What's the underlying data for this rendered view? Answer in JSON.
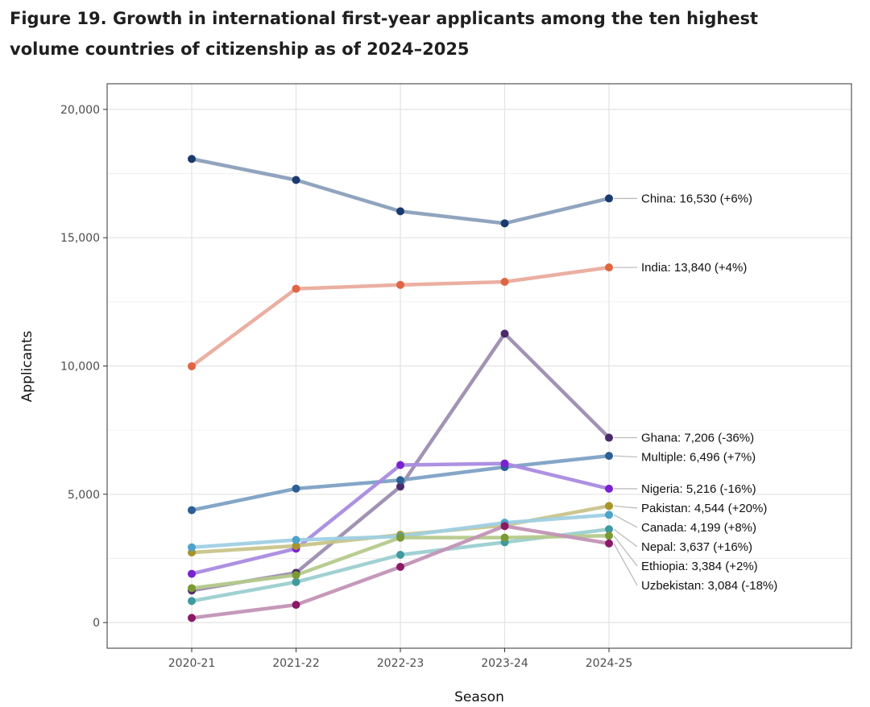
{
  "figure": {
    "title_line1": "Figure 19. Growth in international first-year applicants among the ten highest",
    "title_line2": "volume countries of citizenship as of 2024–2025"
  },
  "chart_data": {
    "type": "line",
    "xlabel": "Season",
    "ylabel": "Applicants",
    "categories": [
      "2020-21",
      "2021-22",
      "2022-23",
      "2023-24",
      "2024-25"
    ],
    "ylim": [
      -1000,
      21000
    ],
    "yticks": [
      0,
      5000,
      10000,
      15000,
      20000
    ],
    "ytick_labels": [
      "0",
      "5,000",
      "10,000",
      "15,000",
      "20,000"
    ],
    "grid": true,
    "series": [
      {
        "name": "China",
        "label": "China: 16,530 (+6%)",
        "line_color": "#8a9fbb",
        "point_color": "#1a3a6e",
        "values": [
          18070,
          17250,
          16030,
          15560,
          16530
        ]
      },
      {
        "name": "India",
        "label": "India: 13,840 (+4%)",
        "line_color": "#eaab9c",
        "point_color": "#e06543",
        "values": [
          9990,
          13010,
          13160,
          13280,
          13840
        ]
      },
      {
        "name": "Ghana",
        "label": "Ghana: 7,206 (-36%)",
        "line_color": "#9d8db0",
        "point_color": "#4b2a6b",
        "values": [
          1250,
          1940,
          5300,
          11260,
          7206
        ]
      },
      {
        "name": "Multiple",
        "label": "Multiple: 6,496 (+7%)",
        "line_color": "#7da1c4",
        "point_color": "#2b5f95",
        "values": [
          4380,
          5220,
          5550,
          6060,
          6496
        ]
      },
      {
        "name": "Nigeria",
        "label": "Nigeria: 5,216 (-16%)",
        "line_color": "#a98be0",
        "point_color": "#7a22d1",
        "values": [
          1900,
          2880,
          6140,
          6200,
          5216
        ]
      },
      {
        "name": "Pakistan",
        "label": "Pakistan: 4,544 (+20%)",
        "line_color": "#c9c489",
        "point_color": "#a8942a",
        "values": [
          2730,
          2990,
          3420,
          3790,
          4544
        ]
      },
      {
        "name": "Canada",
        "label": "Canada: 4,199 (+8%)",
        "line_color": "#9fd0e4",
        "point_color": "#4da3c9",
        "values": [
          2930,
          3220,
          3360,
          3890,
          4199
        ]
      },
      {
        "name": "Nepal",
        "label": "Nepal: 3,637 (+16%)",
        "line_color": "#9ccfd0",
        "point_color": "#3f9aa0",
        "values": [
          840,
          1580,
          2640,
          3130,
          3637
        ]
      },
      {
        "name": "Ethiopia",
        "label": "Ethiopia: 3,384 (+2%)",
        "line_color": "#b5ca8c",
        "point_color": "#7a9a34",
        "values": [
          1340,
          1850,
          3310,
          3310,
          3384
        ]
      },
      {
        "name": "Uzbekistan",
        "label": "Uzbekistan: 3,084 (-18%)",
        "line_color": "#c293b6",
        "point_color": "#8a1a66",
        "values": [
          180,
          690,
          2170,
          3760,
          3084
        ]
      }
    ],
    "label_order": [
      "China",
      "India",
      "Ghana",
      "Multiple",
      "Nigeria",
      "Pakistan",
      "Canada",
      "Nepal",
      "Ethiopia",
      "Uzbekistan"
    ]
  }
}
